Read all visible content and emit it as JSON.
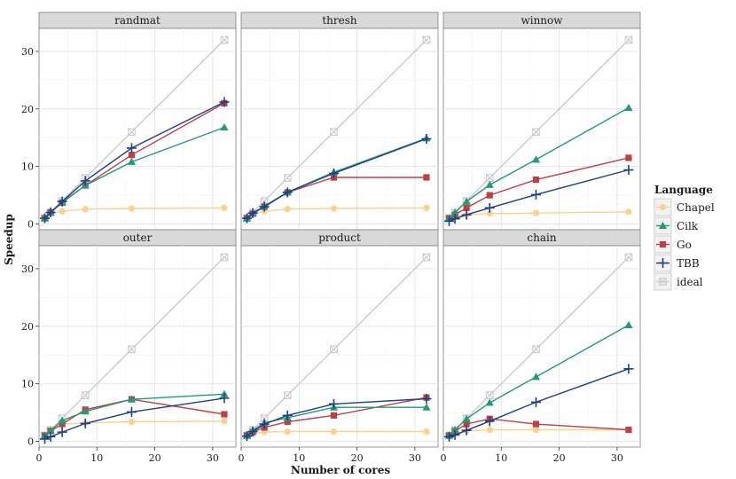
{
  "chart_data": {
    "type": "line",
    "xlabel": "Number of cores",
    "ylabel": "Speedup",
    "xlim": [
      0,
      34
    ],
    "ylim": [
      -1,
      34
    ],
    "xticks": [
      0,
      10,
      20,
      30
    ],
    "yticks": [
      0,
      10,
      20,
      30
    ],
    "grid": true,
    "legend": {
      "title": "Language",
      "placement": "right",
      "entries": [
        "Chapel",
        "Cilk",
        "Go",
        "TBB",
        "ideal"
      ]
    },
    "x": [
      1,
      2,
      4,
      8,
      16,
      32
    ],
    "series_styles": {
      "Chapel": {
        "color": "#fdd18c",
        "marker": "circle"
      },
      "Cilk": {
        "color": "#239b76",
        "marker": "triangle"
      },
      "Go": {
        "color": "#bf4044",
        "marker": "square"
      },
      "TBB": {
        "color": "#1f3f87",
        "marker": "plus"
      },
      "ideal": {
        "color": "#cccccc",
        "marker": "boxcross"
      }
    },
    "panels": [
      {
        "title": "randmat",
        "series": [
          {
            "name": "Chapel",
            "values": [
              1.0,
              1.8,
              2.2,
              2.6,
              2.7,
              2.8
            ]
          },
          {
            "name": "Cilk",
            "values": [
              1.0,
              2.0,
              3.8,
              6.7,
              10.8,
              16.8
            ]
          },
          {
            "name": "Go",
            "values": [
              1.0,
              2.0,
              3.7,
              6.7,
              12.0,
              21.0
            ]
          },
          {
            "name": "TBB",
            "values": [
              1.0,
              2.0,
              3.9,
              7.5,
              13.2,
              21.2
            ]
          },
          {
            "name": "ideal",
            "values": [
              1,
              2,
              4,
              8,
              16,
              32
            ]
          }
        ]
      },
      {
        "title": "thresh",
        "series": [
          {
            "name": "Chapel",
            "values": [
              1.0,
              1.7,
              2.2,
              2.6,
              2.7,
              2.8
            ]
          },
          {
            "name": "Cilk",
            "values": [
              1.0,
              1.9,
              3.1,
              5.5,
              9.0,
              14.9
            ]
          },
          {
            "name": "Go",
            "values": [
              1.0,
              1.8,
              3.0,
              5.5,
              8.1,
              8.1
            ]
          },
          {
            "name": "TBB",
            "values": [
              1.0,
              1.9,
              3.0,
              5.5,
              8.8,
              14.8
            ]
          },
          {
            "name": "ideal",
            "values": [
              1,
              2,
              4,
              8,
              16,
              32
            ]
          }
        ]
      },
      {
        "title": "winnow",
        "series": [
          {
            "name": "Chapel",
            "values": [
              1.0,
              1.3,
              1.6,
              1.8,
              1.9,
              2.1
            ]
          },
          {
            "name": "Cilk",
            "values": [
              1.0,
              2.0,
              3.9,
              6.8,
              11.2,
              20.2
            ]
          },
          {
            "name": "Go",
            "values": [
              1.0,
              1.6,
              2.8,
              5.0,
              7.7,
              11.5
            ]
          },
          {
            "name": "TBB",
            "values": [
              0.5,
              0.9,
              1.6,
              2.8,
              5.1,
              9.4
            ]
          },
          {
            "name": "ideal",
            "values": [
              1,
              2,
              4,
              8,
              16,
              32
            ]
          }
        ]
      },
      {
        "title": "outer",
        "series": [
          {
            "name": "Chapel",
            "values": [
              1.0,
              1.9,
              3.0,
              3.2,
              3.4,
              3.5
            ]
          },
          {
            "name": "Cilk",
            "values": [
              1.0,
              1.9,
              3.6,
              5.2,
              7.3,
              8.2
            ]
          },
          {
            "name": "Go",
            "values": [
              1.0,
              1.8,
              3.0,
              5.5,
              7.3,
              4.7
            ]
          },
          {
            "name": "TBB",
            "values": [
              0.4,
              0.8,
              1.6,
              3.1,
              5.1,
              7.5
            ]
          },
          {
            "name": "ideal",
            "values": [
              1,
              2,
              4,
              8,
              16,
              32
            ]
          }
        ]
      },
      {
        "title": "product",
        "series": [
          {
            "name": "Chapel",
            "values": [
              1.0,
              1.3,
              1.6,
              1.7,
              1.7,
              1.7
            ]
          },
          {
            "name": "Cilk",
            "values": [
              1.0,
              1.9,
              3.2,
              4.1,
              5.9,
              5.9
            ]
          },
          {
            "name": "Go",
            "values": [
              1.0,
              1.6,
              2.4,
              3.4,
              4.5,
              7.6
            ]
          },
          {
            "name": "TBB",
            "values": [
              0.9,
              1.7,
              3.0,
              4.5,
              6.5,
              7.4
            ]
          },
          {
            "name": "ideal",
            "values": [
              1,
              2,
              4,
              8,
              16,
              32
            ]
          }
        ]
      },
      {
        "title": "chain",
        "series": [
          {
            "name": "Chapel",
            "values": [
              1.0,
              1.4,
              1.8,
              2.0,
              2.0,
              2.0
            ]
          },
          {
            "name": "Cilk",
            "values": [
              1.0,
              2.0,
              3.9,
              6.7,
              11.2,
              20.2
            ]
          },
          {
            "name": "Go",
            "values": [
              1.0,
              1.8,
              3.0,
              3.9,
              3.0,
              2.0
            ]
          },
          {
            "name": "TBB",
            "values": [
              0.8,
              1.1,
              1.9,
              3.5,
              6.8,
              12.6
            ]
          },
          {
            "name": "ideal",
            "values": [
              1,
              2,
              4,
              8,
              16,
              32
            ]
          }
        ]
      }
    ]
  }
}
